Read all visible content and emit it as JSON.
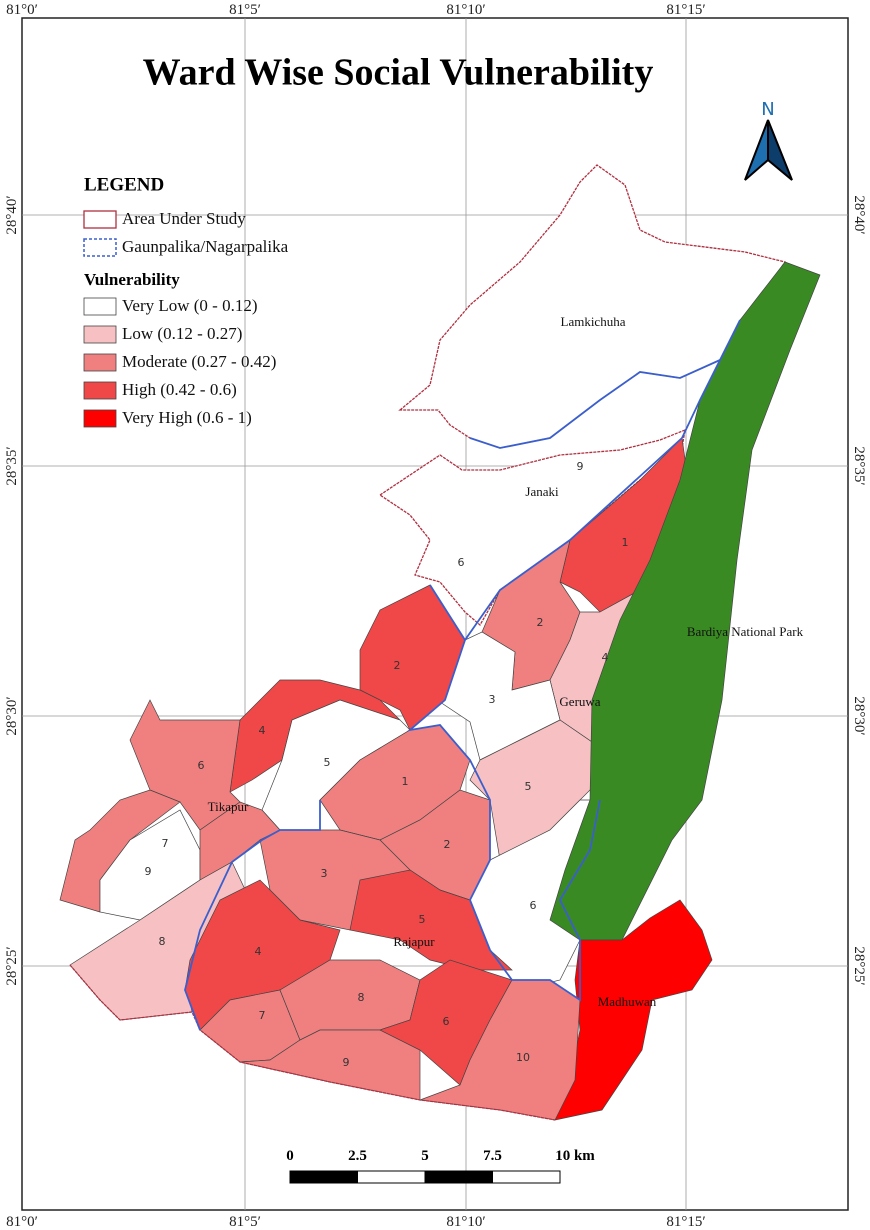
{
  "title": "Ward Wise Social Vulnerability",
  "north": "N",
  "graticule": {
    "top": [
      "81°0′",
      "81°5′",
      "81°10′",
      "81°15′"
    ],
    "bottom": [
      "81°0′",
      "81°5′",
      "81°10′",
      "81°15′"
    ],
    "left": [
      "28°40′",
      "28°35′",
      "28°30′",
      "28°25′"
    ],
    "right": [
      "28°40′",
      "28°35′",
      "28°30′",
      "28°25′"
    ]
  },
  "legend": {
    "title": "LEGEND",
    "items": [
      "Area Under Study",
      "Gaunpalika/Nagarpalika"
    ],
    "vulnerability_title": "Vulnerability",
    "classes": [
      {
        "label": "Very Low (0 - 0.12)",
        "color": "#ffffff"
      },
      {
        "label": "Low (0.12 - 0.27)",
        "color": "#f7c1c4"
      },
      {
        "label": "Moderate (0.27 - 0.42)",
        "color": "#f08080"
      },
      {
        "label": "High (0.42 - 0.6)",
        "color": "#f04848"
      },
      {
        "label": "Very High (0.6 - 1)",
        "color": "#ff0000"
      }
    ],
    "park_color": "#3a8a24"
  },
  "places": [
    "Lamkichuha",
    "Janaki",
    "Geruwa",
    "Tikapur",
    "Rajapur",
    "Madhuwan",
    "Bardiya National Park"
  ],
  "ward_labels": [
    "9",
    "6",
    "1",
    "2",
    "4",
    "3",
    "5",
    "6",
    "2",
    "4",
    "5",
    "6",
    "7",
    "9",
    "8",
    "1",
    "2",
    "3",
    "5",
    "4",
    "7",
    "8",
    "6",
    "9",
    "10"
  ],
  "scale_bar": [
    "0",
    "2.5",
    "5",
    "7.5",
    "10 km"
  ]
}
